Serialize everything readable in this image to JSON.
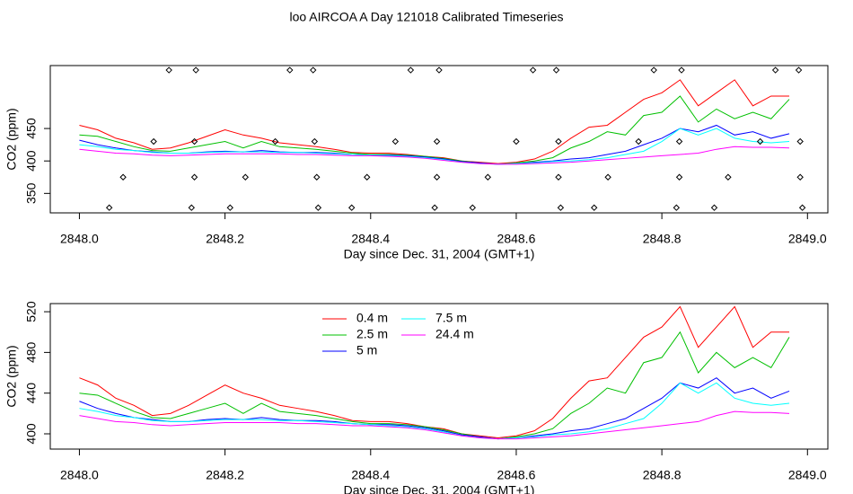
{
  "chart_data": [
    {
      "type": "line",
      "title": "loo AIRCOA A  Day 121018  Calibrated Timeseries",
      "x_label": "Day since Dec. 31, 2004 (GMT+1)",
      "y_label": "CO2 (ppm)",
      "xlim": [
        2847.96,
        2849.028
      ],
      "ylim": [
        320,
        547
      ],
      "xticks": [
        {
          "value": 2848,
          "label": "2848.0"
        },
        {
          "value": 2848.2,
          "label": "2848.2"
        },
        {
          "value": 2848.4,
          "label": "2848.4"
        },
        {
          "value": 2848.6,
          "label": "2848.6"
        },
        {
          "value": 2848.8,
          "label": "2848.8"
        },
        {
          "value": 2849,
          "label": "2849.0"
        }
      ],
      "yticks": [
        350,
        400,
        450
      ],
      "x": [
        2848,
        2848.025,
        2848.05,
        2848.075,
        2848.1,
        2848.125,
        2848.15,
        2848.175,
        2848.2,
        2848.225,
        2848.25,
        2848.275,
        2848.3,
        2848.325,
        2848.35,
        2848.375,
        2848.4,
        2848.425,
        2848.45,
        2848.475,
        2848.5,
        2848.525,
        2848.55,
        2848.575,
        2848.6,
        2848.625,
        2848.65,
        2848.675,
        2848.7,
        2848.725,
        2848.75,
        2848.775,
        2848.8,
        2848.825,
        2848.85,
        2848.875,
        2848.9,
        2848.925,
        2848.95,
        2848.975
      ],
      "series": [
        {
          "color": "#ff0000",
          "values": [
            455,
            448,
            435,
            428,
            418,
            420,
            428,
            438,
            448,
            440,
            435,
            428,
            425,
            422,
            418,
            413,
            412,
            412,
            410,
            407,
            405,
            400,
            398,
            396,
            398,
            403,
            415,
            435,
            452,
            455,
            475,
            495,
            505,
            525,
            485,
            505,
            525,
            485,
            500,
            500
          ]
        },
        {
          "color": "#00c000",
          "values": [
            440,
            438,
            430,
            422,
            416,
            415,
            420,
            425,
            430,
            420,
            430,
            422,
            420,
            418,
            415,
            412,
            410,
            410,
            409,
            407,
            404,
            400,
            397,
            395,
            397,
            400,
            405,
            420,
            430,
            445,
            440,
            470,
            475,
            500,
            460,
            480,
            465,
            475,
            465,
            495
          ]
        },
        {
          "color": "#0000ff",
          "values": [
            432,
            425,
            420,
            416,
            414,
            412,
            412,
            414,
            415,
            414,
            416,
            414,
            413,
            413,
            412,
            410,
            409,
            409,
            408,
            406,
            403,
            399,
            397,
            395,
            396,
            398,
            400,
            403,
            405,
            410,
            415,
            425,
            435,
            450,
            445,
            455,
            440,
            445,
            435,
            442
          ]
        },
        {
          "color": "#00ffff",
          "values": [
            425,
            422,
            418,
            416,
            413,
            412,
            412,
            413,
            414,
            414,
            414,
            413,
            413,
            412,
            411,
            410,
            409,
            408,
            407,
            405,
            402,
            398,
            396,
            395,
            396,
            397,
            399,
            400,
            402,
            405,
            410,
            415,
            430,
            450,
            440,
            450,
            435,
            430,
            428,
            430
          ]
        },
        {
          "color": "#ff00ff",
          "values": [
            418,
            415,
            412,
            411,
            409,
            408,
            409,
            410,
            411,
            411,
            411,
            411,
            410,
            410,
            409,
            408,
            408,
            407,
            406,
            404,
            401,
            398,
            396,
            395,
            395,
            396,
            397,
            398,
            400,
            402,
            404,
            406,
            408,
            410,
            412,
            418,
            422,
            421,
            421,
            420
          ]
        }
      ],
      "points": {
        "x": [
          2848.123,
          2848.16,
          2848.289,
          2848.321,
          2848.455,
          2848.494,
          2848.623,
          2848.655,
          2848.789,
          2848.827,
          2848.956,
          2848.988,
          2848.102,
          2848.158,
          2848.269,
          2848.323,
          2848.434,
          2848.491,
          2848.6,
          2848.658,
          2848.768,
          2848.824,
          2848.935,
          2848.99,
          2848.06,
          2848.158,
          2848.228,
          2848.326,
          2848.395,
          2848.491,
          2848.561,
          2848.658,
          2848.726,
          2848.824,
          2848.891,
          2848.99,
          2848.041,
          2848.154,
          2848.207,
          2848.328,
          2848.374,
          2848.488,
          2848.54,
          2848.661,
          2848.707,
          2848.82,
          2848.872,
          2848.993
        ],
        "y": [
          540,
          540,
          540,
          540,
          540,
          540,
          540,
          540,
          540,
          540,
          540,
          540,
          430,
          430,
          430,
          430,
          430,
          430,
          430,
          430,
          430,
          430,
          430,
          430,
          375,
          375,
          375,
          375,
          375,
          375,
          375,
          375,
          375,
          375,
          375,
          375,
          328,
          328,
          328,
          328,
          328,
          328,
          328,
          328,
          328,
          328,
          328,
          328
        ]
      }
    },
    {
      "type": "line",
      "x_label": "Day since Dec. 31, 2004 (GMT+1)",
      "y_label": "CO2 (ppm)",
      "xlim": [
        2847.96,
        2849.028
      ],
      "ylim": [
        385,
        528
      ],
      "xticks": [
        {
          "value": 2848,
          "label": "2848.0"
        },
        {
          "value": 2848.2,
          "label": "2848.2"
        },
        {
          "value": 2848.4,
          "label": "2848.4"
        },
        {
          "value": 2848.6,
          "label": "2848.6"
        },
        {
          "value": 2848.8,
          "label": "2848.8"
        },
        {
          "value": 2849,
          "label": "2849.0"
        }
      ],
      "yticks": [
        400,
        440,
        480,
        520
      ],
      "legend": "top",
      "x": [
        2848,
        2848.025,
        2848.05,
        2848.075,
        2848.1,
        2848.125,
        2848.15,
        2848.175,
        2848.2,
        2848.225,
        2848.25,
        2848.275,
        2848.3,
        2848.325,
        2848.35,
        2848.375,
        2848.4,
        2848.425,
        2848.45,
        2848.475,
        2848.5,
        2848.525,
        2848.55,
        2848.575,
        2848.6,
        2848.625,
        2848.65,
        2848.675,
        2848.7,
        2848.725,
        2848.75,
        2848.775,
        2848.8,
        2848.825,
        2848.85,
        2848.875,
        2848.9,
        2848.925,
        2848.95,
        2848.975
      ],
      "series": [
        {
          "name": "0.4 m",
          "color": "#ff0000",
          "values": [
            455,
            448,
            435,
            428,
            418,
            420,
            428,
            438,
            448,
            440,
            435,
            428,
            425,
            422,
            418,
            413,
            412,
            412,
            410,
            407,
            405,
            400,
            398,
            396,
            398,
            403,
            415,
            435,
            452,
            455,
            475,
            495,
            505,
            525,
            485,
            505,
            525,
            485,
            500,
            500
          ]
        },
        {
          "name": "2.5 m",
          "color": "#00c000",
          "values": [
            440,
            438,
            430,
            422,
            416,
            415,
            420,
            425,
            430,
            420,
            430,
            422,
            420,
            418,
            415,
            412,
            410,
            410,
            409,
            407,
            404,
            400,
            397,
            395,
            397,
            400,
            405,
            420,
            430,
            445,
            440,
            470,
            475,
            500,
            460,
            480,
            465,
            475,
            465,
            495
          ]
        },
        {
          "name": "5 m",
          "color": "#0000ff",
          "values": [
            432,
            425,
            420,
            416,
            414,
            412,
            412,
            414,
            415,
            414,
            416,
            414,
            413,
            413,
            412,
            410,
            409,
            409,
            408,
            406,
            403,
            399,
            397,
            395,
            396,
            398,
            400,
            403,
            405,
            410,
            415,
            425,
            435,
            450,
            445,
            455,
            440,
            445,
            435,
            442
          ]
        },
        {
          "name": "7.5 m",
          "color": "#00ffff",
          "values": [
            425,
            422,
            418,
            416,
            413,
            412,
            412,
            413,
            414,
            414,
            414,
            413,
            413,
            412,
            411,
            410,
            409,
            408,
            407,
            405,
            402,
            398,
            396,
            395,
            396,
            397,
            399,
            400,
            402,
            405,
            410,
            415,
            430,
            450,
            440,
            450,
            435,
            430,
            428,
            430
          ]
        },
        {
          "name": "24.4 m",
          "color": "#ff00ff",
          "values": [
            418,
            415,
            412,
            411,
            409,
            408,
            409,
            410,
            411,
            411,
            411,
            411,
            410,
            410,
            409,
            408,
            408,
            407,
            406,
            404,
            401,
            398,
            396,
            395,
            395,
            396,
            397,
            398,
            400,
            402,
            404,
            406,
            408,
            410,
            412,
            418,
            422,
            421,
            421,
            420
          ]
        }
      ]
    }
  ]
}
